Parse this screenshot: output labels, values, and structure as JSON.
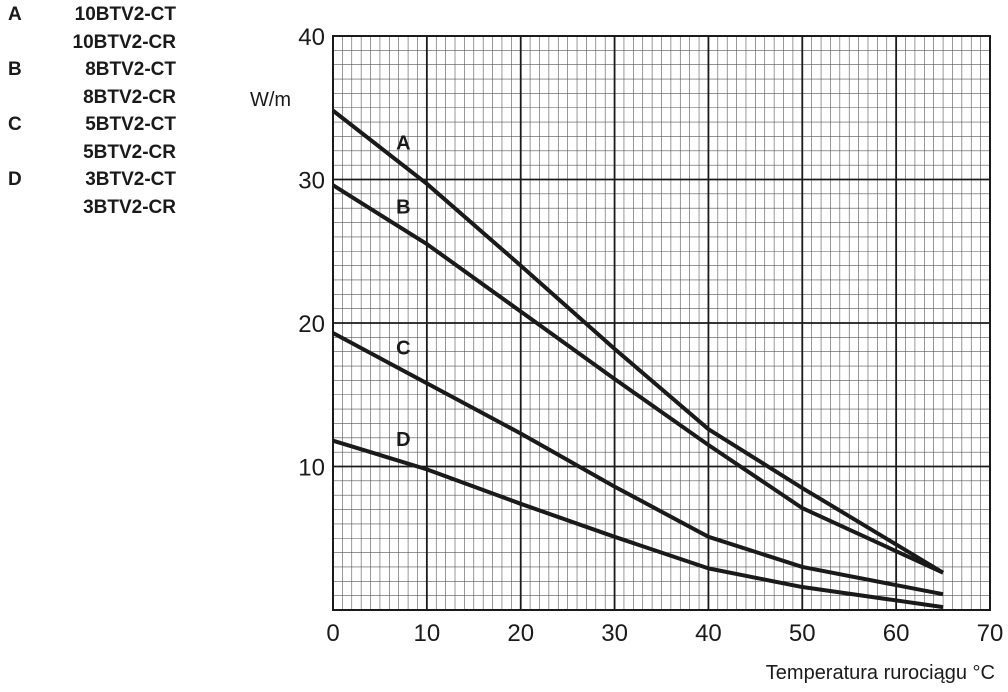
{
  "legend": [
    {
      "key": "A",
      "models": [
        "10BTV2-CT",
        "10BTV2-CR"
      ]
    },
    {
      "key": "B",
      "models": [
        "8BTV2-CT",
        "8BTV2-CR"
      ]
    },
    {
      "key": "C",
      "models": [
        "5BTV2-CT",
        "5BTV2-CR"
      ]
    },
    {
      "key": "D",
      "models": [
        "3BTV2-CT",
        "3BTV2-CR"
      ]
    }
  ],
  "chart_data": {
    "type": "line",
    "xlabel": "Temperatura rurociągu °C",
    "ylabel": "W/m",
    "xlim": [
      0,
      70
    ],
    "ylim": [
      0,
      40
    ],
    "xticks": [
      0,
      10,
      20,
      30,
      40,
      50,
      60,
      70
    ],
    "yticks": [
      10,
      20,
      30,
      40
    ],
    "grid": true,
    "series": [
      {
        "name": "A",
        "x": [
          0,
          10,
          20,
          30,
          40,
          50,
          65
        ],
        "y": [
          34.8,
          29.7,
          24,
          18.2,
          12.6,
          8.5,
          2.6
        ]
      },
      {
        "name": "B",
        "x": [
          0,
          10,
          20,
          30,
          40,
          50,
          65
        ],
        "y": [
          29.6,
          25.5,
          20.8,
          16.1,
          11.5,
          7.1,
          2.6
        ]
      },
      {
        "name": "C",
        "x": [
          0,
          10,
          20,
          30,
          40,
          50,
          65
        ],
        "y": [
          19.3,
          15.8,
          12.3,
          8.6,
          5.1,
          3.0,
          1.1
        ]
      },
      {
        "name": "D",
        "x": [
          0,
          10,
          20,
          30,
          40,
          50,
          65
        ],
        "y": [
          11.8,
          9.8,
          7.4,
          5.1,
          2.9,
          1.6,
          0.2
        ]
      }
    ]
  }
}
